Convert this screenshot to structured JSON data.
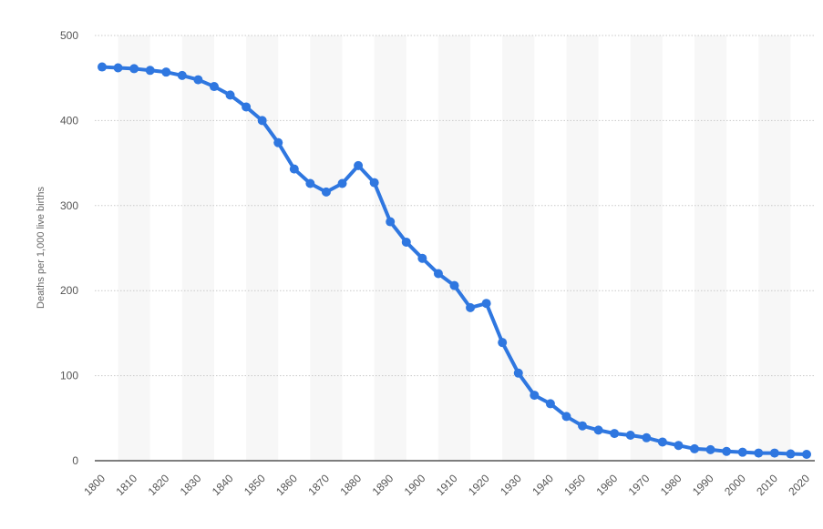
{
  "chart_data": {
    "type": "line",
    "title": "",
    "xlabel": "",
    "ylabel": "Deaths per 1,000 live births",
    "xlim": [
      1800,
      2020
    ],
    "ylim": [
      0,
      500
    ],
    "y_ticks": [
      "0",
      "100",
      "200",
      "300",
      "400",
      "500"
    ],
    "x_ticks": [
      "1800",
      "1810",
      "1820",
      "1830",
      "1840",
      "1850",
      "1860",
      "1870",
      "1880",
      "1890",
      "1900",
      "1910",
      "1920",
      "1930",
      "1940",
      "1950",
      "1960",
      "1970",
      "1980",
      "1990",
      "2000",
      "2010",
      "2020"
    ],
    "grid": "horizontal dotted",
    "background_bands": "alternating light gray by decade",
    "series": [
      {
        "color": "#2f77e0",
        "x": [
          1800,
          1805,
          1810,
          1815,
          1820,
          1825,
          1830,
          1835,
          1840,
          1845,
          1850,
          1855,
          1860,
          1865,
          1870,
          1875,
          1880,
          1885,
          1890,
          1895,
          1900,
          1905,
          1910,
          1915,
          1920,
          1925,
          1930,
          1935,
          1940,
          1945,
          1950,
          1955,
          1960,
          1965,
          1970,
          1975,
          1980,
          1985,
          1990,
          1995,
          2000,
          2005,
          2010,
          2015,
          2020
        ],
        "y": [
          463,
          462,
          461,
          459,
          457,
          453,
          448,
          440,
          430,
          416,
          400,
          374,
          343,
          326,
          316,
          326,
          347,
          327,
          281,
          257,
          238,
          220,
          206,
          180,
          185,
          139,
          103,
          77,
          67,
          52,
          41,
          36,
          32,
          30,
          27,
          22,
          18,
          14,
          13,
          11,
          10,
          9,
          9,
          8,
          7.5
        ]
      }
    ]
  }
}
